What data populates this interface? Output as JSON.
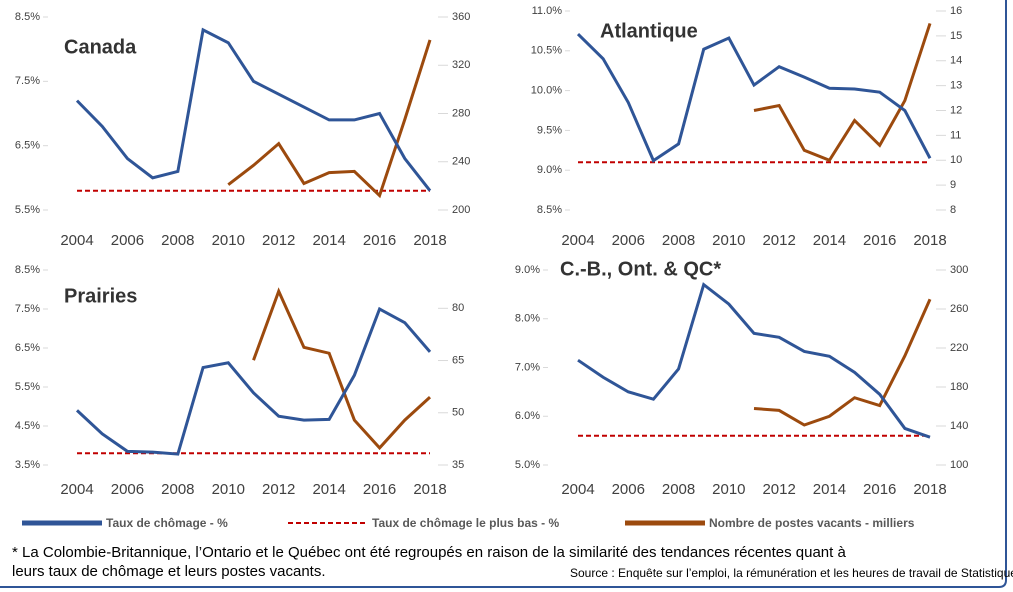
{
  "chart_data": {
    "type": "line",
    "x": [
      2004,
      2005,
      2006,
      2007,
      2008,
      2009,
      2010,
      2011,
      2012,
      2013,
      2014,
      2015,
      2016,
      2017,
      2018
    ],
    "xlim": [
      2004,
      2018
    ],
    "xticks": [
      2004,
      2006,
      2008,
      2010,
      2012,
      2014,
      2016,
      2018
    ],
    "series": [
      {
        "name": "Taux de chômage - %",
        "color": "#2f5597",
        "style": "solid"
      },
      {
        "name": "Taux de chômage le plus bas - %",
        "color": "#c00000",
        "style": "dashed"
      },
      {
        "name": "Nombre de postes vacants - milliers",
        "color": "#9c4a0e",
        "style": "solid",
        "axis": "y2"
      }
    ],
    "panels": [
      {
        "title": "Canada",
        "ylim": [
          5.5,
          8.5
        ],
        "yticks": [
          {
            "value": 5.5,
            "label": "5.5%"
          },
          {
            "value": 6.5,
            "label": "6.5%"
          },
          {
            "value": 7.5,
            "label": "7.5%"
          },
          {
            "value": 8.5,
            "label": "8.5%"
          }
        ],
        "y2lim": [
          200,
          360
        ],
        "y2ticks": [
          200,
          240,
          280,
          320,
          360
        ],
        "values": [
          [
            7.2,
            6.8,
            6.3,
            6.0,
            6.1,
            8.3,
            8.1,
            7.5,
            7.3,
            7.1,
            6.9,
            6.9,
            7.0,
            6.3,
            5.8
          ],
          [
            5.8,
            5.8,
            5.8,
            5.8,
            5.8,
            5.8,
            5.8,
            5.8,
            5.8,
            5.8,
            5.8,
            5.8,
            5.8,
            5.8,
            5.8
          ],
          [
            null,
            null,
            null,
            null,
            null,
            null,
            221,
            237,
            255,
            222,
            231,
            232,
            212,
            275,
            341
          ]
        ]
      },
      {
        "title": "Atlantique",
        "ylim": [
          8.5,
          11.0
        ],
        "yticks": [
          {
            "value": 8.5,
            "label": "8.5%"
          },
          {
            "value": 9.0,
            "label": "9.0%"
          },
          {
            "value": 9.5,
            "label": "9.5%"
          },
          {
            "value": 10.0,
            "label": "10.0%"
          },
          {
            "value": 10.5,
            "label": "10.5%"
          },
          {
            "value": 11.0,
            "label": "11.0%"
          }
        ],
        "y2lim": [
          8,
          16
        ],
        "y2ticks": [
          8,
          9,
          10,
          11,
          12,
          13,
          14,
          15,
          16
        ],
        "values": [
          [
            10.71,
            10.4,
            9.85,
            9.12,
            9.33,
            10.52,
            10.66,
            10.07,
            10.3,
            10.17,
            10.03,
            10.02,
            9.98,
            9.75,
            9.15
          ],
          [
            9.1,
            9.1,
            9.1,
            9.1,
            9.1,
            9.1,
            9.1,
            9.1,
            9.1,
            9.1,
            9.1,
            9.1,
            9.1,
            9.1,
            9.1
          ],
          [
            null,
            null,
            null,
            null,
            null,
            null,
            null,
            12.0,
            12.2,
            10.4,
            10.0,
            11.6,
            10.6,
            12.4,
            15.5
          ]
        ]
      },
      {
        "title": "Prairies",
        "ylim": [
          3.5,
          8.5
        ],
        "yticks": [
          {
            "value": 3.5,
            "label": "3.5%"
          },
          {
            "value": 4.5,
            "label": "4.5%"
          },
          {
            "value": 5.5,
            "label": "5.5%"
          },
          {
            "value": 6.5,
            "label": "6.5%"
          },
          {
            "value": 7.5,
            "label": "7.5%"
          },
          {
            "value": 8.5,
            "label": "8.5%"
          }
        ],
        "y2lim": [
          35,
          91
        ],
        "y2ticks": [
          35,
          50,
          65,
          80
        ],
        "values": [
          [
            4.9,
            4.3,
            3.85,
            3.83,
            3.78,
            6.0,
            6.12,
            5.35,
            4.75,
            4.65,
            4.67,
            5.8,
            7.5,
            7.15,
            6.4
          ],
          [
            3.8,
            3.8,
            3.8,
            3.8,
            3.8,
            3.8,
            3.8,
            3.8,
            3.8,
            3.8,
            3.8,
            3.8,
            3.8,
            3.8,
            3.8
          ],
          [
            null,
            null,
            null,
            null,
            null,
            null,
            null,
            65.1,
            84.9,
            68.8,
            67.1,
            47.9,
            39.9,
            47.9,
            54.5
          ]
        ]
      },
      {
        "title": "C.-B., Ont. & QC*",
        "ylim": [
          5.0,
          9.0
        ],
        "yticks": [
          {
            "value": 5.0,
            "label": "5.0%"
          },
          {
            "value": 6.0,
            "label": "6.0%"
          },
          {
            "value": 7.0,
            "label": "7.0%"
          },
          {
            "value": 8.0,
            "label": "8.0%"
          },
          {
            "value": 9.0,
            "label": "9.0%"
          }
        ],
        "y2lim": [
          100,
          300
        ],
        "y2ticks": [
          100,
          140,
          180,
          220,
          260,
          300
        ],
        "values": [
          [
            7.15,
            6.8,
            6.5,
            6.35,
            6.97,
            8.7,
            8.3,
            7.7,
            7.62,
            7.33,
            7.23,
            6.9,
            6.45,
            5.75,
            5.57
          ],
          [
            5.6,
            5.6,
            5.6,
            5.6,
            5.6,
            5.6,
            5.6,
            5.6,
            5.6,
            5.6,
            5.6,
            5.6,
            5.6,
            5.6,
            5.6
          ],
          [
            null,
            null,
            null,
            null,
            null,
            null,
            null,
            158,
            156,
            141,
            150,
            169,
            161,
            212,
            270
          ]
        ]
      }
    ],
    "footnote": [
      "* La Colombie-Britannique, l’Ontario et le Québec ont été regroupés en raison de la similarité des tendances récentes quant à",
      "leurs taux de chômage et leurs postes vacants."
    ],
    "source": "Source : Enquête sur l’emploi, la rémunération et les heures de travail de Statistique Canada"
  }
}
